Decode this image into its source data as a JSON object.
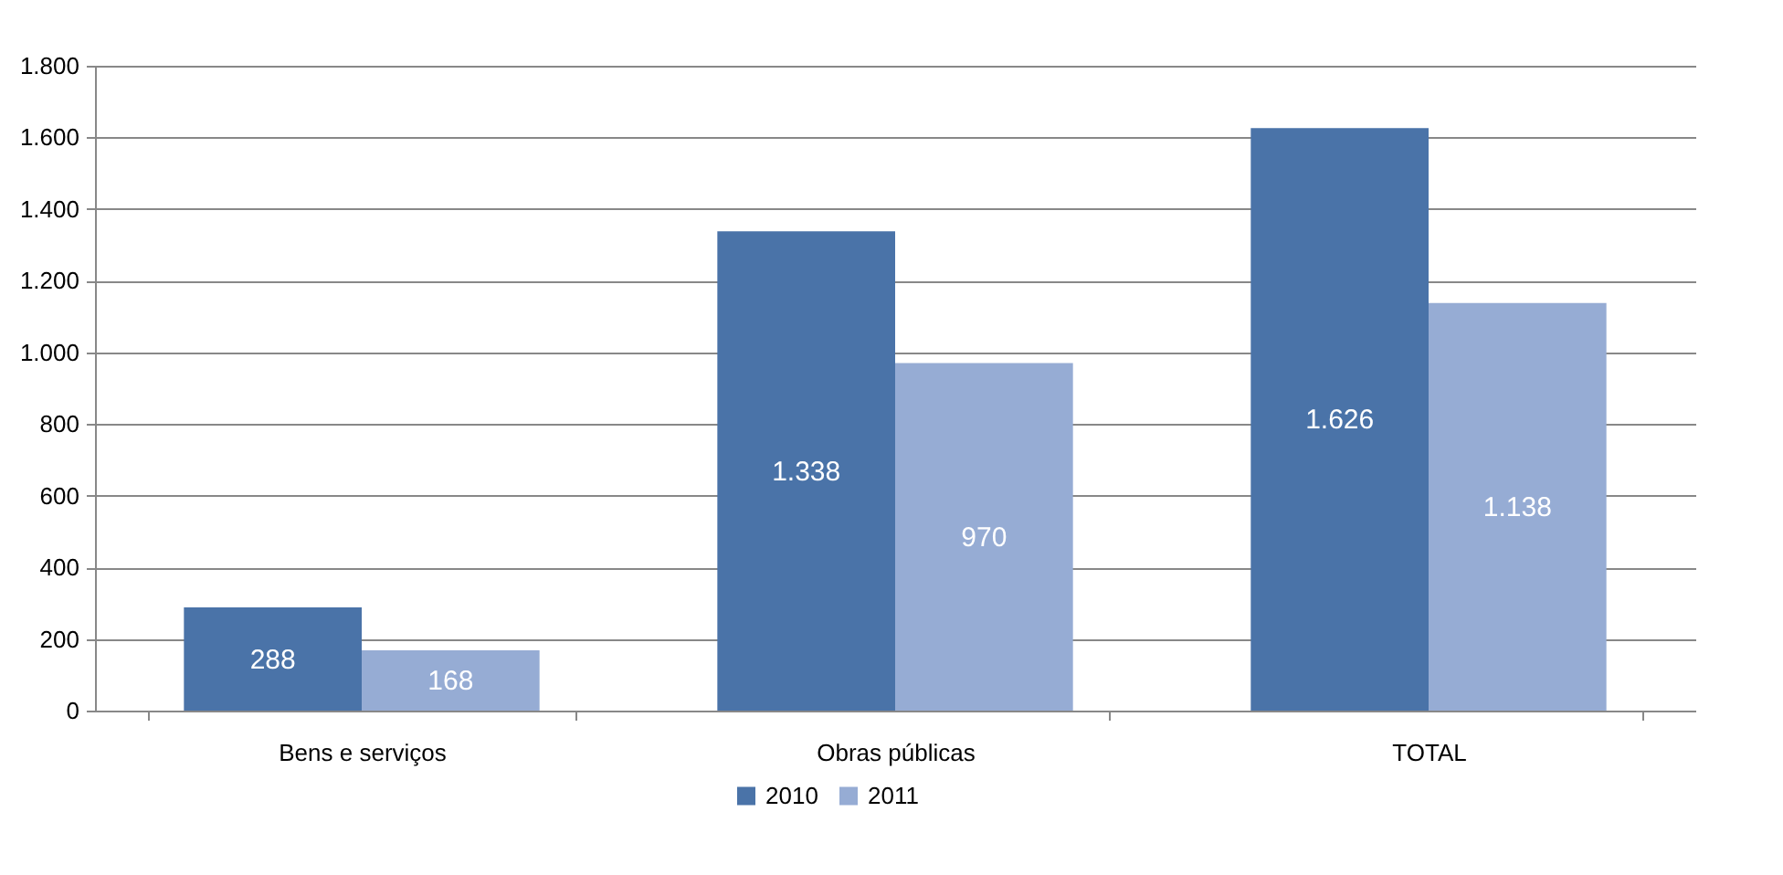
{
  "chart_data": {
    "type": "bar",
    "categories": [
      "Bens e serviços",
      "Obras públicas",
      "TOTAL"
    ],
    "series": [
      {
        "name": "2010",
        "color": "#4a73a8",
        "values": [
          288,
          1338,
          1626
        ],
        "value_labels": [
          "288",
          "1.338",
          "1.626"
        ]
      },
      {
        "name": "2011",
        "color": "#96acd4",
        "values": [
          168,
          970,
          1138
        ],
        "value_labels": [
          "168",
          "970",
          "1.138"
        ]
      }
    ],
    "ylim": [
      0,
      1800
    ],
    "yticks": [
      0,
      200,
      400,
      600,
      800,
      {
        "value": 1000,
        "label": "1.000"
      },
      {
        "value": 1200,
        "label": "1.200"
      },
      {
        "value": 1400,
        "label": "1.400"
      },
      {
        "value": 1600,
        "label": "1.600"
      },
      {
        "value": 1800,
        "label": "1.800"
      }
    ],
    "grid": "y",
    "legend": "bottom"
  }
}
